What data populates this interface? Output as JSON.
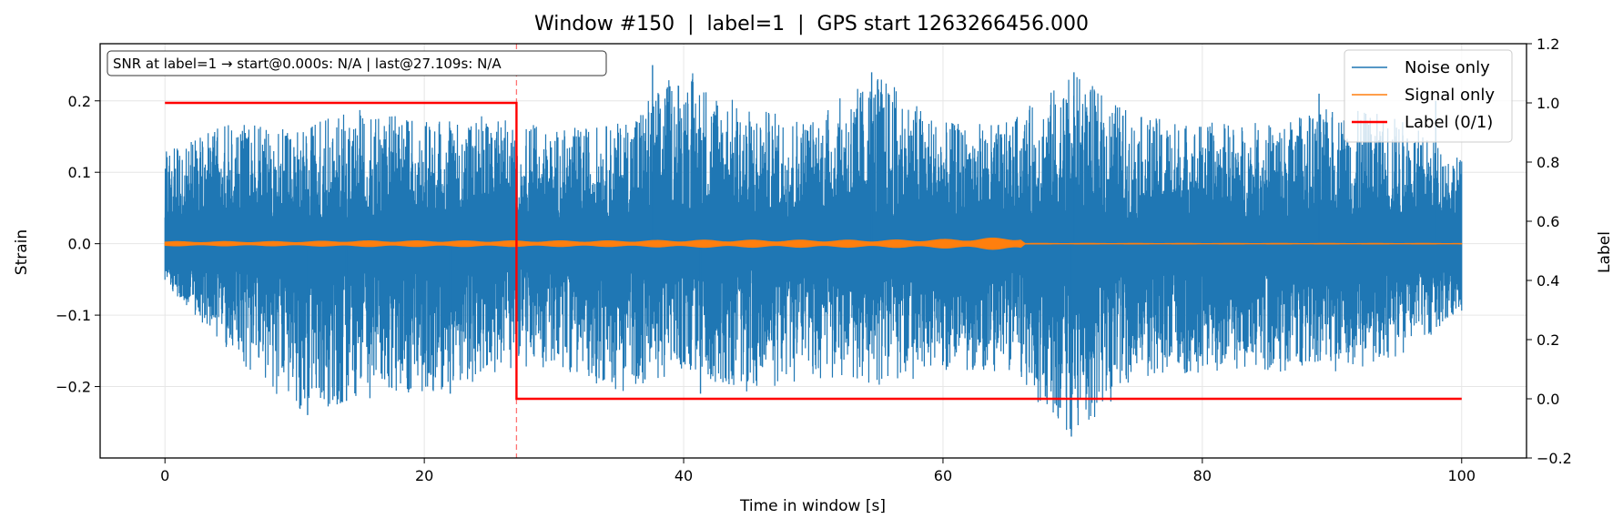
{
  "chart_data": {
    "type": "line",
    "title": "Window #150  |  label=1  |  GPS start 1263266456.000",
    "xlabel": "Time in window [s]",
    "ylabel": "Strain",
    "y2label": "Label",
    "xlim": [
      -5,
      105
    ],
    "ylim": [
      -0.3,
      0.28
    ],
    "y2lim": [
      -0.2,
      1.2
    ],
    "xticks": [
      0,
      20,
      40,
      60,
      80,
      100
    ],
    "xtick_labels": [
      "0",
      "20",
      "40",
      "60",
      "80",
      "100"
    ],
    "yticks": [
      -0.2,
      -0.1,
      0.0,
      0.1,
      0.2
    ],
    "ytick_labels": [
      "−0.2",
      "−0.1",
      "0.0",
      "0.1",
      "0.2"
    ],
    "y2ticks": [
      -0.2,
      0.0,
      0.2,
      0.4,
      0.6,
      0.8,
      1.0,
      1.2
    ],
    "y2tick_labels": [
      "−0.2",
      "0.0",
      "0.2",
      "0.4",
      "0.6",
      "0.8",
      "1.0",
      "1.2"
    ],
    "grid": true,
    "legend_position": "top-right",
    "annotation": "SNR at label=1 → start@0.000s: N/A | last@27.109s: N/A",
    "vline_x": 27.109,
    "series": [
      {
        "name": "Noise only",
        "axis": "left",
        "color": "#1f77b4",
        "x_range": [
          0,
          100
        ],
        "envelope_x": [
          0,
          5,
          10,
          15,
          20,
          25,
          30,
          35,
          40,
          45,
          50,
          55,
          60,
          65,
          70,
          75,
          80,
          85,
          90,
          95,
          100
        ],
        "envelope_max": [
          0.13,
          0.17,
          0.16,
          0.19,
          0.17,
          0.18,
          0.16,
          0.17,
          0.25,
          0.19,
          0.18,
          0.24,
          0.17,
          0.17,
          0.24,
          0.18,
          0.17,
          0.17,
          0.19,
          0.18,
          0.12
        ],
        "envelope_min": [
          -0.06,
          -0.15,
          -0.24,
          -0.22,
          -0.21,
          -0.19,
          -0.17,
          -0.21,
          -0.18,
          -0.21,
          -0.19,
          -0.2,
          -0.18,
          -0.18,
          -0.27,
          -0.19,
          -0.18,
          -0.18,
          -0.19,
          -0.16,
          -0.1
        ],
        "spikes": [
          [
            11,
            -0.24
          ],
          [
            14,
            -0.22
          ],
          [
            22,
            -0.21
          ],
          [
            37.6,
            0.25
          ],
          [
            41.3,
            -0.21
          ],
          [
            54.5,
            0.24
          ],
          [
            69.9,
            -0.27
          ],
          [
            70.1,
            0.24
          ],
          [
            89,
            0.21
          ],
          [
            98,
            0.2
          ]
        ]
      },
      {
        "name": "Signal only",
        "axis": "left",
        "color": "#ff7f0e",
        "x": [
          0,
          5,
          10,
          15,
          20,
          25,
          27,
          30,
          35,
          40,
          45,
          50,
          55,
          60,
          62,
          64,
          66,
          66.3,
          70,
          80,
          90,
          100
        ],
        "amplitude": [
          0.003,
          0.003,
          0.003,
          0.004,
          0.004,
          0.004,
          0.004,
          0.004,
          0.004,
          0.005,
          0.005,
          0.005,
          0.005,
          0.006,
          0.007,
          0.008,
          0.009,
          0.0005,
          0.0005,
          0.0005,
          0.0005,
          0.0005
        ]
      },
      {
        "name": "Label (0/1)",
        "axis": "right",
        "color": "#ff0000",
        "x": [
          0,
          27.109,
          27.109,
          100
        ],
        "values": [
          1,
          1,
          0,
          0
        ]
      }
    ]
  }
}
